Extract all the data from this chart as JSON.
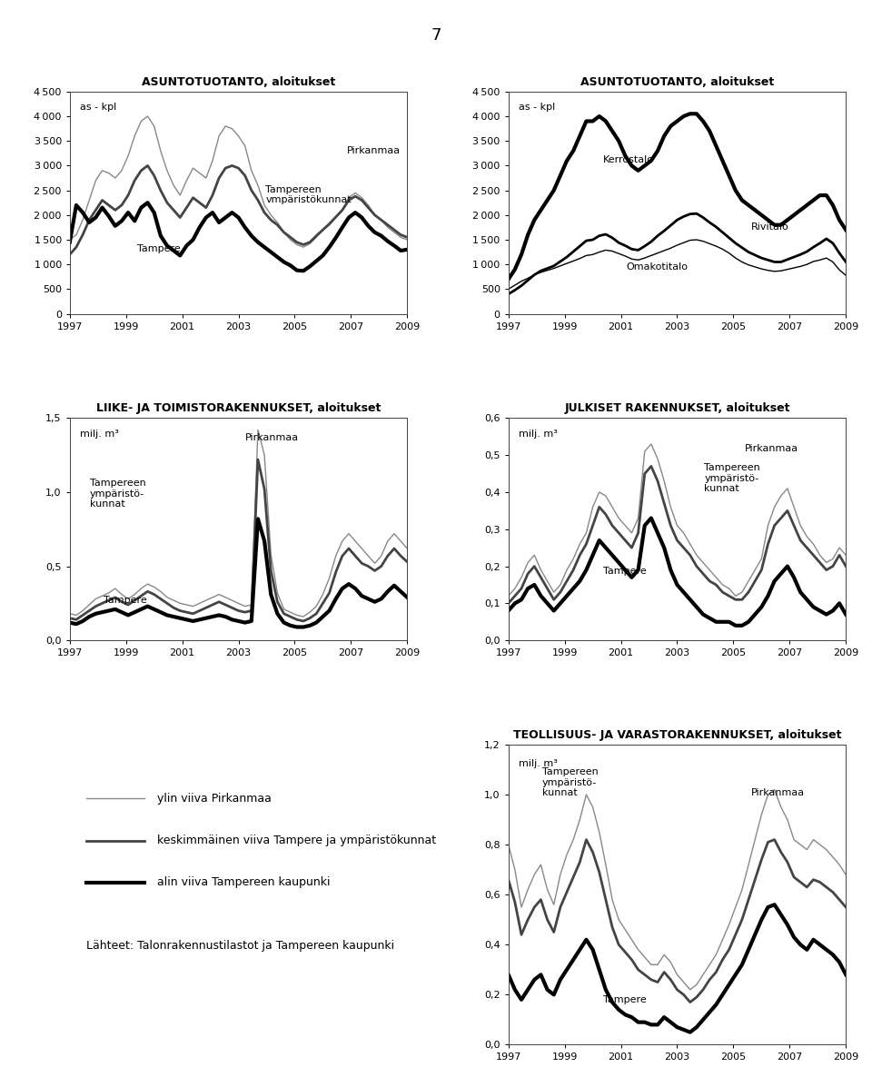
{
  "page_number": "7",
  "background_color": "#ffffff",
  "subplot1": {
    "title": "ASUNTOTUOTANTO, aloitukset",
    "ylabel": "as - kpl",
    "ylim": [
      0,
      4500
    ],
    "yticks": [
      0,
      500,
      1000,
      1500,
      2000,
      2500,
      3000,
      3500,
      4000,
      4500
    ],
    "xticks": [
      1997,
      1999,
      2001,
      2003,
      2005,
      2007,
      2009
    ],
    "label_pirkanmaa": "Pirkanmaa",
    "label_ymparistokunnat": "Tampereen\nvmpäristökunnat",
    "label_tampere": "Tampere",
    "pirkanmaa": [
      1500,
      1600,
      1900,
      2300,
      2700,
      2900,
      2850,
      2750,
      2900,
      3200,
      3600,
      3900,
      4000,
      3800,
      3300,
      2900,
      2600,
      2400,
      2700,
      2950,
      2850,
      2750,
      3100,
      3600,
      3800,
      3750,
      3600,
      3400,
      2900,
      2600,
      2200,
      2000,
      1850,
      1650,
      1500,
      1400,
      1350,
      1420,
      1550,
      1700,
      1800,
      1950,
      2100,
      2350,
      2450,
      2350,
      2200,
      2000,
      1900,
      1750,
      1650,
      1550,
      1500
    ],
    "ymparistokunnat": [
      1200,
      1350,
      1600,
      1900,
      2100,
      2300,
      2200,
      2100,
      2200,
      2400,
      2700,
      2900,
      3000,
      2800,
      2500,
      2250,
      2100,
      1950,
      2150,
      2350,
      2250,
      2150,
      2400,
      2750,
      2950,
      3000,
      2950,
      2800,
      2500,
      2300,
      2050,
      1900,
      1800,
      1650,
      1550,
      1450,
      1400,
      1450,
      1580,
      1700,
      1820,
      1960,
      2100,
      2300,
      2380,
      2300,
      2150,
      2000,
      1900,
      1800,
      1700,
      1600,
      1550
    ],
    "tampere": [
      1450,
      2200,
      2050,
      1850,
      1950,
      2150,
      1980,
      1780,
      1880,
      2050,
      1880,
      2150,
      2250,
      2050,
      1580,
      1380,
      1280,
      1180,
      1380,
      1500,
      1750,
      1950,
      2050,
      1850,
      1950,
      2050,
      1950,
      1750,
      1580,
      1450,
      1350,
      1250,
      1150,
      1050,
      980,
      880,
      870,
      960,
      1070,
      1180,
      1350,
      1540,
      1750,
      1950,
      2050,
      1950,
      1780,
      1650,
      1580,
      1470,
      1380,
      1280,
      1300
    ]
  },
  "subplot2": {
    "title": "ASUNTOTUOTANTO, aloitukset",
    "ylabel": "as - kpl",
    "ylim": [
      0,
      4500
    ],
    "yticks": [
      0,
      500,
      1000,
      1500,
      2000,
      2500,
      3000,
      3500,
      4000,
      4500
    ],
    "xticks": [
      1997,
      1999,
      2001,
      2003,
      2005,
      2007,
      2009
    ],
    "label_kerrostalo": "Kerrostalo",
    "label_rivitalo": "Rivitalo",
    "label_omakotitalo": "Omakotitalo",
    "kerrostalo": [
      700,
      900,
      1200,
      1600,
      1900,
      2100,
      2300,
      2500,
      2800,
      3100,
      3300,
      3600,
      3900,
      3900,
      4000,
      3900,
      3700,
      3500,
      3200,
      3000,
      2900,
      3000,
      3100,
      3300,
      3600,
      3800,
      3900,
      4000,
      4050,
      4050,
      3900,
      3700,
      3400,
      3100,
      2800,
      2500,
      2300,
      2200,
      2100,
      2000,
      1900,
      1800,
      1800,
      1900,
      2000,
      2100,
      2200,
      2300,
      2400,
      2400,
      2200,
      1900,
      1700
    ],
    "rivitalo": [
      400,
      480,
      570,
      680,
      790,
      870,
      920,
      970,
      1060,
      1150,
      1260,
      1370,
      1480,
      1500,
      1580,
      1610,
      1540,
      1440,
      1380,
      1310,
      1290,
      1370,
      1460,
      1580,
      1680,
      1790,
      1900,
      1970,
      2020,
      2030,
      1950,
      1850,
      1760,
      1650,
      1540,
      1430,
      1340,
      1250,
      1190,
      1130,
      1090,
      1050,
      1050,
      1100,
      1150,
      1200,
      1260,
      1350,
      1430,
      1520,
      1430,
      1230,
      1050
    ],
    "omakotitalo": [
      500,
      580,
      660,
      720,
      790,
      840,
      880,
      920,
      970,
      1020,
      1070,
      1120,
      1180,
      1200,
      1250,
      1290,
      1270,
      1220,
      1170,
      1110,
      1090,
      1130,
      1180,
      1230,
      1280,
      1330,
      1390,
      1440,
      1490,
      1500,
      1470,
      1420,
      1370,
      1310,
      1230,
      1130,
      1050,
      990,
      950,
      910,
      880,
      860,
      870,
      900,
      930,
      960,
      1000,
      1060,
      1090,
      1130,
      1050,
      890,
      780
    ]
  },
  "subplot3": {
    "title": "LIIKE- JA TOIMISTORAKENNUKSET, aloitukset",
    "ylabel": "milj. m³",
    "ylim": [
      0.0,
      1.5
    ],
    "yticks": [
      0.0,
      0.5,
      1.0,
      1.5
    ],
    "xticks": [
      1997,
      1999,
      2001,
      2003,
      2005,
      2007,
      2009
    ],
    "label_pirkanmaa": "Pirkanmaa",
    "label_ymparistokunnat": "Tampereen\nympäristö-\nkunnat",
    "label_tampere": "Tampere",
    "pirkanmaa": [
      0.18,
      0.17,
      0.2,
      0.24,
      0.28,
      0.3,
      0.32,
      0.35,
      0.31,
      0.28,
      0.31,
      0.35,
      0.38,
      0.36,
      0.33,
      0.29,
      0.27,
      0.25,
      0.24,
      0.23,
      0.25,
      0.27,
      0.29,
      0.31,
      0.29,
      0.27,
      0.25,
      0.23,
      0.24,
      1.42,
      1.25,
      0.58,
      0.32,
      0.21,
      0.19,
      0.17,
      0.16,
      0.19,
      0.23,
      0.31,
      0.42,
      0.57,
      0.67,
      0.72,
      0.67,
      0.62,
      0.57,
      0.52,
      0.57,
      0.67,
      0.72,
      0.67,
      0.62
    ],
    "ymparistokunnat": [
      0.15,
      0.14,
      0.17,
      0.2,
      0.23,
      0.25,
      0.27,
      0.29,
      0.26,
      0.24,
      0.27,
      0.3,
      0.33,
      0.31,
      0.28,
      0.25,
      0.22,
      0.2,
      0.19,
      0.18,
      0.2,
      0.22,
      0.24,
      0.26,
      0.24,
      0.22,
      0.2,
      0.19,
      0.2,
      1.22,
      1.02,
      0.47,
      0.26,
      0.18,
      0.16,
      0.14,
      0.13,
      0.15,
      0.18,
      0.25,
      0.32,
      0.46,
      0.57,
      0.62,
      0.57,
      0.52,
      0.5,
      0.47,
      0.5,
      0.57,
      0.62,
      0.57,
      0.53
    ],
    "tampere": [
      0.12,
      0.11,
      0.13,
      0.16,
      0.18,
      0.19,
      0.2,
      0.21,
      0.19,
      0.17,
      0.19,
      0.21,
      0.23,
      0.21,
      0.19,
      0.17,
      0.16,
      0.15,
      0.14,
      0.13,
      0.14,
      0.15,
      0.16,
      0.17,
      0.16,
      0.14,
      0.13,
      0.12,
      0.13,
      0.82,
      0.67,
      0.31,
      0.18,
      0.12,
      0.1,
      0.09,
      0.09,
      0.1,
      0.12,
      0.16,
      0.2,
      0.28,
      0.35,
      0.38,
      0.35,
      0.3,
      0.28,
      0.26,
      0.28,
      0.33,
      0.37,
      0.33,
      0.29
    ]
  },
  "subplot4": {
    "title": "JULKISET RAKENNUKSET, aloitukset",
    "ylabel": "milj. m³",
    "ylim": [
      0.0,
      0.6
    ],
    "yticks": [
      0.0,
      0.1,
      0.2,
      0.3,
      0.4,
      0.5,
      0.6
    ],
    "xticks": [
      1997,
      1999,
      2001,
      2003,
      2005,
      2007,
      2009
    ],
    "label_pirkanmaa": "Pirkanmaa",
    "label_ymparistokunnat": "Tampereen\nympäristö-\nkunnat",
    "label_tampere": "Tampere",
    "pirkanmaa": [
      0.12,
      0.14,
      0.17,
      0.21,
      0.23,
      0.19,
      0.16,
      0.13,
      0.15,
      0.19,
      0.22,
      0.26,
      0.29,
      0.36,
      0.4,
      0.39,
      0.36,
      0.33,
      0.31,
      0.29,
      0.33,
      0.51,
      0.53,
      0.49,
      0.43,
      0.36,
      0.31,
      0.29,
      0.26,
      0.23,
      0.21,
      0.19,
      0.17,
      0.15,
      0.14,
      0.12,
      0.13,
      0.16,
      0.19,
      0.22,
      0.31,
      0.36,
      0.39,
      0.41,
      0.36,
      0.31,
      0.28,
      0.26,
      0.23,
      0.21,
      0.22,
      0.25,
      0.23
    ],
    "ymparistokunnat": [
      0.1,
      0.12,
      0.14,
      0.18,
      0.2,
      0.17,
      0.14,
      0.11,
      0.13,
      0.16,
      0.19,
      0.23,
      0.26,
      0.31,
      0.36,
      0.34,
      0.31,
      0.29,
      0.27,
      0.25,
      0.29,
      0.45,
      0.47,
      0.43,
      0.37,
      0.31,
      0.27,
      0.25,
      0.23,
      0.2,
      0.18,
      0.16,
      0.15,
      0.13,
      0.12,
      0.11,
      0.11,
      0.13,
      0.16,
      0.19,
      0.26,
      0.31,
      0.33,
      0.35,
      0.31,
      0.27,
      0.25,
      0.23,
      0.21,
      0.19,
      0.2,
      0.23,
      0.2
    ],
    "tampere": [
      0.08,
      0.1,
      0.11,
      0.14,
      0.15,
      0.12,
      0.1,
      0.08,
      0.1,
      0.12,
      0.14,
      0.16,
      0.19,
      0.23,
      0.27,
      0.25,
      0.23,
      0.21,
      0.19,
      0.17,
      0.19,
      0.31,
      0.33,
      0.29,
      0.25,
      0.19,
      0.15,
      0.13,
      0.11,
      0.09,
      0.07,
      0.06,
      0.05,
      0.05,
      0.05,
      0.04,
      0.04,
      0.05,
      0.07,
      0.09,
      0.12,
      0.16,
      0.18,
      0.2,
      0.17,
      0.13,
      0.11,
      0.09,
      0.08,
      0.07,
      0.08,
      0.1,
      0.07
    ]
  },
  "subplot5": {
    "title": "TEOLLISUUS- JA VARASTORAKENNUKSET, aloitukset",
    "ylabel": "milj. m³",
    "ylim": [
      0.0,
      1.2
    ],
    "yticks": [
      0.0,
      0.2,
      0.4,
      0.6,
      0.8,
      1.0,
      1.2
    ],
    "xticks": [
      1997,
      1999,
      2001,
      2003,
      2005,
      2007,
      2009
    ],
    "label_pirkanmaa": "Pirkanmaa",
    "label_ymparistokunnat": "Tampereen\nympäristö-\nkunnat",
    "label_tampere": "Tampere",
    "pirkanmaa": [
      0.8,
      0.7,
      0.55,
      0.62,
      0.68,
      0.72,
      0.62,
      0.56,
      0.68,
      0.76,
      0.82,
      0.9,
      1.0,
      0.95,
      0.85,
      0.72,
      0.58,
      0.5,
      0.46,
      0.42,
      0.38,
      0.35,
      0.32,
      0.32,
      0.36,
      0.33,
      0.28,
      0.25,
      0.22,
      0.24,
      0.28,
      0.32,
      0.36,
      0.42,
      0.48,
      0.55,
      0.62,
      0.72,
      0.82,
      0.92,
      1.0,
      1.02,
      0.95,
      0.9,
      0.82,
      0.8,
      0.78,
      0.82,
      0.8,
      0.78,
      0.75,
      0.72,
      0.68
    ],
    "ymparistokunnat": [
      0.66,
      0.57,
      0.44,
      0.5,
      0.55,
      0.58,
      0.5,
      0.45,
      0.55,
      0.61,
      0.67,
      0.73,
      0.82,
      0.77,
      0.69,
      0.58,
      0.47,
      0.4,
      0.37,
      0.34,
      0.3,
      0.28,
      0.26,
      0.25,
      0.29,
      0.26,
      0.22,
      0.2,
      0.17,
      0.19,
      0.22,
      0.26,
      0.29,
      0.34,
      0.38,
      0.44,
      0.5,
      0.58,
      0.66,
      0.74,
      0.81,
      0.82,
      0.77,
      0.73,
      0.67,
      0.65,
      0.63,
      0.66,
      0.65,
      0.63,
      0.61,
      0.58,
      0.55
    ],
    "tampere": [
      0.28,
      0.22,
      0.18,
      0.22,
      0.26,
      0.28,
      0.22,
      0.2,
      0.26,
      0.3,
      0.34,
      0.38,
      0.42,
      0.38,
      0.3,
      0.22,
      0.17,
      0.14,
      0.12,
      0.11,
      0.09,
      0.09,
      0.08,
      0.08,
      0.11,
      0.09,
      0.07,
      0.06,
      0.05,
      0.07,
      0.1,
      0.13,
      0.16,
      0.2,
      0.24,
      0.28,
      0.32,
      0.38,
      0.44,
      0.5,
      0.55,
      0.56,
      0.52,
      0.48,
      0.43,
      0.4,
      0.38,
      0.42,
      0.4,
      0.38,
      0.36,
      0.33,
      0.28
    ]
  },
  "legend": {
    "ylin_viiva": "ylin viiva Pirkanmaa",
    "keski_viiva": "keskimmäinen viiva Tampere ja ympäristökunnat",
    "alin_viiva": "alin viiva Tampereen kaupunki",
    "lahde": "Lähteet: Talonrakennustilastot ja Tampereen kaupunki"
  },
  "thin_lw": 1.0,
  "mid_lw": 2.0,
  "thick_lw": 3.0,
  "color_thin": "#888888",
  "color_mid": "#444444",
  "color_thick": "#000000"
}
